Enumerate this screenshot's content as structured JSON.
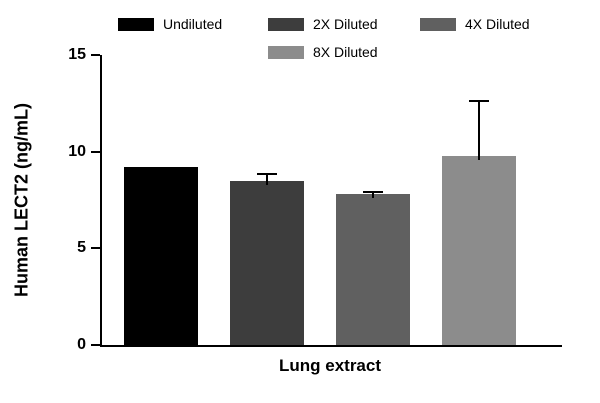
{
  "chart_data": {
    "type": "bar",
    "title": "",
    "xlabel": "Lung extract",
    "ylabel": "Human LECT2 (ng/mL)",
    "ylim": [
      0,
      15
    ],
    "yticks": [
      0,
      5,
      10,
      15
    ],
    "categories": [
      "Lung extract"
    ],
    "series": [
      {
        "name": "Undiluted",
        "color": "#000000",
        "values": [
          9.2
        ],
        "errors": [
          0
        ]
      },
      {
        "name": "2X Diluted",
        "color": "#3d3d3d",
        "values": [
          8.5
        ],
        "errors": [
          0.4
        ]
      },
      {
        "name": "4X Diluted",
        "color": "#606060",
        "values": [
          7.8
        ],
        "errors": [
          0.15
        ]
      },
      {
        "name": "8X Diluted",
        "color": "#8c8c8c",
        "values": [
          9.8
        ],
        "errors": [
          2.9
        ]
      }
    ],
    "legend_position": "top",
    "grid": false,
    "axis_color": "#000000",
    "background": "#ffffff"
  }
}
